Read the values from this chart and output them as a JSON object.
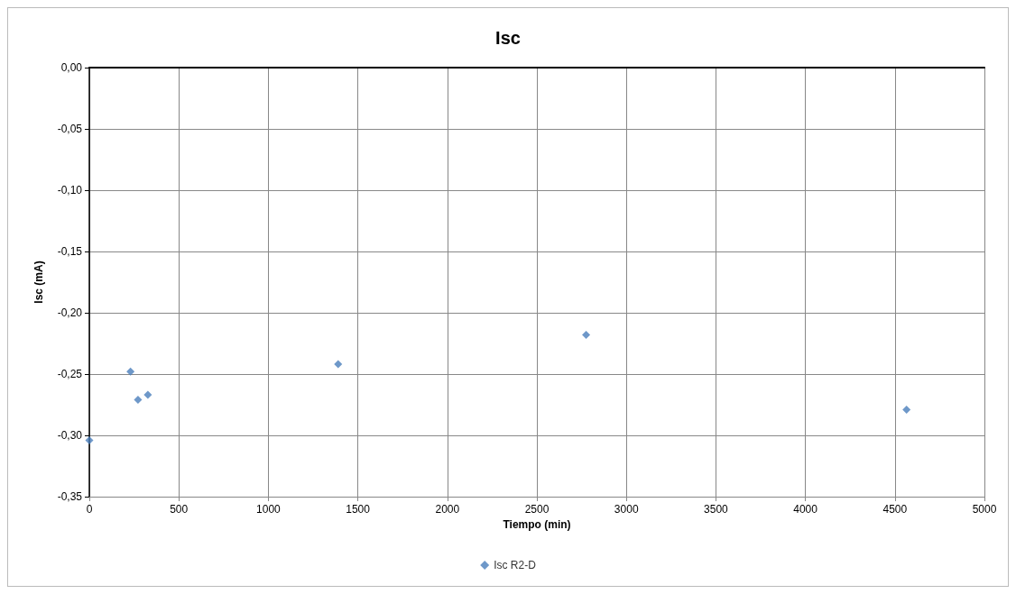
{
  "chart_data": {
    "type": "scatter",
    "title": "Isc",
    "xlabel": "Tiempo (min)",
    "ylabel": "Isc (mA)",
    "x": [
      0,
      230,
      272,
      327,
      1390,
      2775,
      4565
    ],
    "series": [
      {
        "name": "Isc R2-D",
        "color": "#4a7ebb",
        "values": [
          -0.304,
          -0.248,
          -0.271,
          -0.267,
          -0.242,
          -0.218,
          -0.279
        ]
      }
    ],
    "xlim": [
      0,
      5000
    ],
    "xticks": [
      0,
      500,
      1000,
      1500,
      2000,
      2500,
      3000,
      3500,
      4000,
      4500,
      5000
    ],
    "ylim": [
      -0.35,
      0
    ],
    "yticks": [
      {
        "value": -0.35,
        "label": "-0,35"
      },
      {
        "value": -0.3,
        "label": "-0,30"
      },
      {
        "value": -0.25,
        "label": "-0,25"
      },
      {
        "value": -0.2,
        "label": "-0,20"
      },
      {
        "value": -0.15,
        "label": "-0,15"
      },
      {
        "value": -0.1,
        "label": "-0,10"
      },
      {
        "value": -0.05,
        "label": "-0,05"
      },
      {
        "value": 0,
        "label": "0,00"
      }
    ],
    "grid": true,
    "legend": "bottom",
    "marker": "diamond"
  }
}
